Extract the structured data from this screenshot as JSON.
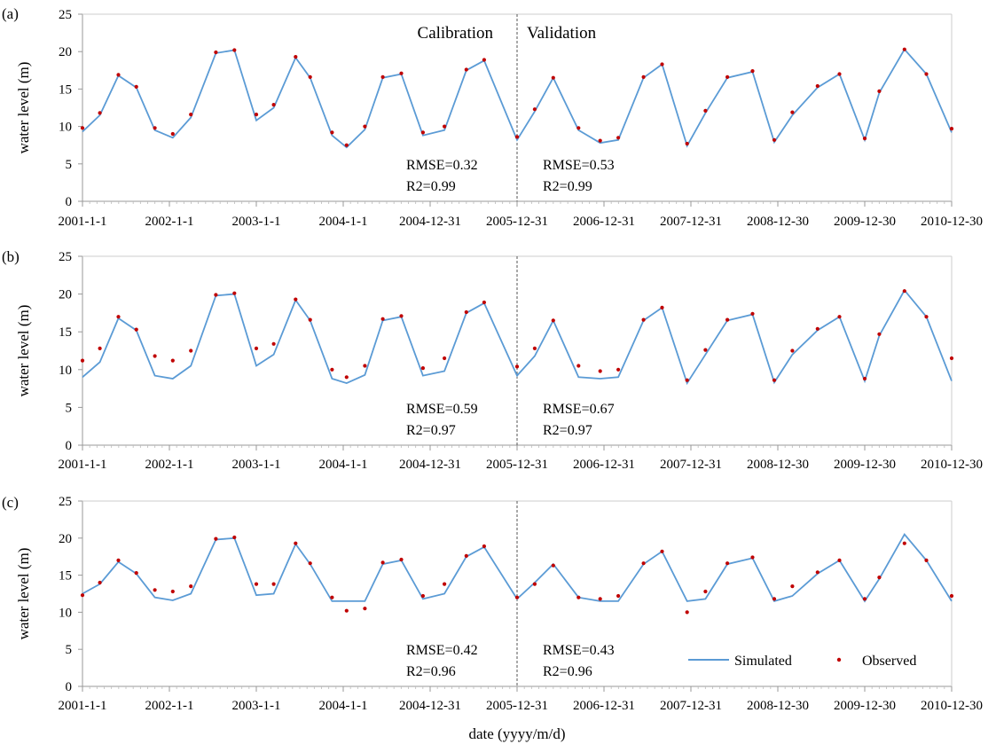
{
  "figure": {
    "xlabel": "date (yyyy/m/d)",
    "x_tick_labels": [
      "2001-1-1",
      "2002-1-1",
      "2003-1-1",
      "2004-1-1",
      "2004-12-31",
      "2005-12-31",
      "2006-12-31",
      "2007-12-31",
      "2008-12-30",
      "2009-12-30",
      "2010-12-30"
    ],
    "calibration_label": "Calibration",
    "validation_label": "Validation",
    "legend": {
      "simulated": "Simulated",
      "observed": "Observed"
    },
    "colors": {
      "simulated": "#5b9bd5",
      "observed": "#c00000"
    }
  },
  "chart_data": [
    {
      "panel": "(a)",
      "type": "line",
      "ylabel": "water level (m)",
      "ylim": [
        0,
        25
      ],
      "yticks": [
        0,
        5,
        10,
        15,
        20,
        25
      ],
      "split_date": "2005-12-31",
      "stats": {
        "calibration": {
          "rmse": "RMSE=0.32",
          "r2": "R2=0.99"
        },
        "validation": {
          "rmse": "RMSE=0.53",
          "r2": "R2=0.99"
        }
      },
      "series": [
        {
          "name": "Simulated",
          "style": "line",
          "x": [
            "2001-01-01",
            "2001-03-15",
            "2001-06-01",
            "2001-08-15",
            "2001-11-01",
            "2002-01-15",
            "2002-04-01",
            "2002-07-15",
            "2002-10-01",
            "2003-01-01",
            "2003-03-15",
            "2003-06-15",
            "2003-08-15",
            "2003-11-15",
            "2004-01-15",
            "2004-04-01",
            "2004-06-15",
            "2004-09-01",
            "2004-12-01",
            "2005-03-01",
            "2005-06-01",
            "2005-08-15",
            "2005-12-31",
            "2006-03-15",
            "2006-06-01",
            "2006-09-15",
            "2006-12-15",
            "2007-03-01",
            "2007-06-15",
            "2007-09-01",
            "2007-12-15",
            "2008-03-01",
            "2008-06-01",
            "2008-09-15",
            "2008-12-15",
            "2009-03-01",
            "2009-06-15",
            "2009-09-15",
            "2009-12-30",
            "2010-03-01",
            "2010-06-15",
            "2010-09-15",
            "2010-12-30"
          ],
          "values": [
            9.3,
            11.5,
            16.8,
            15.2,
            9.5,
            8.5,
            11.2,
            19.8,
            20.2,
            10.8,
            12.5,
            19.2,
            16.5,
            8.8,
            7.2,
            9.6,
            16.5,
            17.0,
            8.8,
            9.5,
            17.5,
            18.8,
            8.2,
            12.0,
            16.5,
            9.5,
            7.8,
            8.2,
            16.5,
            18.3,
            7.4,
            11.8,
            16.5,
            17.3,
            7.9,
            11.5,
            15.2,
            17.0,
            8.2,
            14.5,
            20.3,
            17.0,
            9.2
          ]
        },
        {
          "name": "Observed",
          "style": "dots",
          "x": [
            "2001-01-01",
            "2001-03-15",
            "2001-06-01",
            "2001-08-15",
            "2001-11-01",
            "2002-01-15",
            "2002-04-01",
            "2002-07-15",
            "2002-10-01",
            "2003-01-01",
            "2003-03-15",
            "2003-06-15",
            "2003-08-15",
            "2003-11-15",
            "2004-01-15",
            "2004-04-01",
            "2004-06-15",
            "2004-09-01",
            "2004-12-01",
            "2005-03-01",
            "2005-06-01",
            "2005-08-15",
            "2005-12-31",
            "2006-03-15",
            "2006-06-01",
            "2006-09-15",
            "2006-12-15",
            "2007-03-01",
            "2007-06-15",
            "2007-09-01",
            "2007-12-15",
            "2008-03-01",
            "2008-06-01",
            "2008-09-15",
            "2008-12-15",
            "2009-03-01",
            "2009-06-15",
            "2009-09-15",
            "2009-12-30",
            "2010-03-01",
            "2010-06-15",
            "2010-09-15",
            "2010-12-30"
          ],
          "values": [
            9.8,
            11.8,
            16.9,
            15.3,
            9.8,
            9.0,
            11.6,
            19.9,
            20.2,
            11.6,
            12.9,
            19.3,
            16.6,
            9.2,
            7.5,
            10.0,
            16.6,
            17.1,
            9.2,
            10.0,
            17.6,
            18.9,
            8.6,
            12.3,
            16.5,
            9.8,
            8.1,
            8.5,
            16.6,
            18.3,
            7.7,
            12.1,
            16.6,
            17.4,
            8.2,
            11.9,
            15.4,
            17.0,
            8.4,
            14.7,
            20.3,
            17.0,
            9.7
          ]
        }
      ]
    },
    {
      "panel": "(b)",
      "type": "line",
      "ylabel": "water level (m)",
      "ylim": [
        0,
        25
      ],
      "yticks": [
        0,
        5,
        10,
        15,
        20,
        25
      ],
      "split_date": "2005-12-31",
      "stats": {
        "calibration": {
          "rmse": "RMSE=0.59",
          "r2": "R2=0.97"
        },
        "validation": {
          "rmse": "RMSE=0.67",
          "r2": "R2=0.97"
        }
      },
      "series": [
        {
          "name": "Simulated",
          "style": "line",
          "x": [
            "2001-01-01",
            "2001-03-15",
            "2001-06-01",
            "2001-08-15",
            "2001-11-01",
            "2002-01-15",
            "2002-04-01",
            "2002-07-15",
            "2002-10-01",
            "2003-01-01",
            "2003-03-15",
            "2003-06-15",
            "2003-08-15",
            "2003-11-15",
            "2004-01-15",
            "2004-04-01",
            "2004-06-15",
            "2004-09-01",
            "2004-12-01",
            "2005-03-01",
            "2005-06-01",
            "2005-08-15",
            "2005-12-31",
            "2006-03-15",
            "2006-06-01",
            "2006-09-15",
            "2006-12-15",
            "2007-03-01",
            "2007-06-15",
            "2007-09-01",
            "2007-12-15",
            "2008-03-01",
            "2008-06-01",
            "2008-09-15",
            "2008-12-15",
            "2009-03-01",
            "2009-06-15",
            "2009-09-15",
            "2009-12-30",
            "2010-03-01",
            "2010-06-15",
            "2010-09-15",
            "2010-12-30"
          ],
          "values": [
            9.0,
            11.0,
            16.8,
            15.2,
            9.2,
            8.8,
            10.5,
            19.8,
            20.0,
            10.5,
            12.0,
            19.2,
            16.5,
            8.8,
            8.2,
            9.3,
            16.5,
            17.0,
            9.2,
            9.8,
            17.5,
            18.8,
            9.2,
            11.8,
            16.5,
            9.0,
            8.8,
            9.0,
            16.5,
            18.2,
            8.2,
            12.0,
            16.5,
            17.3,
            8.3,
            12.0,
            15.2,
            17.0,
            8.5,
            14.5,
            20.5,
            17.0,
            8.5
          ]
        },
        {
          "name": "Observed",
          "style": "dots",
          "x": [
            "2001-01-01",
            "2001-03-15",
            "2001-06-01",
            "2001-08-15",
            "2001-11-01",
            "2002-01-15",
            "2002-04-01",
            "2002-07-15",
            "2002-10-01",
            "2003-01-01",
            "2003-03-15",
            "2003-06-15",
            "2003-08-15",
            "2003-11-15",
            "2004-01-15",
            "2004-04-01",
            "2004-06-15",
            "2004-09-01",
            "2004-12-01",
            "2005-03-01",
            "2005-06-01",
            "2005-08-15",
            "2005-12-31",
            "2006-03-15",
            "2006-06-01",
            "2006-09-15",
            "2006-12-15",
            "2007-03-01",
            "2007-06-15",
            "2007-09-01",
            "2007-12-15",
            "2008-03-01",
            "2008-06-01",
            "2008-09-15",
            "2008-12-15",
            "2009-03-01",
            "2009-06-15",
            "2009-09-15",
            "2009-12-30",
            "2010-03-01",
            "2010-06-15",
            "2010-09-15",
            "2010-12-30"
          ],
          "values": [
            11.2,
            12.8,
            17.0,
            15.3,
            11.8,
            11.2,
            12.5,
            19.9,
            20.1,
            12.8,
            13.4,
            19.3,
            16.6,
            10.0,
            9.0,
            10.5,
            16.7,
            17.1,
            10.2,
            11.5,
            17.6,
            18.9,
            10.4,
            12.8,
            16.5,
            10.5,
            9.8,
            10.0,
            16.6,
            18.2,
            8.6,
            12.6,
            16.6,
            17.4,
            8.6,
            12.5,
            15.4,
            17.0,
            8.8,
            14.7,
            20.4,
            17.0,
            11.5
          ]
        }
      ]
    },
    {
      "panel": "(c)",
      "type": "line",
      "ylabel": "water level (m)",
      "ylim": [
        0,
        25
      ],
      "yticks": [
        0,
        5,
        10,
        15,
        20,
        25
      ],
      "split_date": "2005-12-31",
      "stats": {
        "calibration": {
          "rmse": "RMSE=0.42",
          "r2": "R2=0.96"
        },
        "validation": {
          "rmse": "RMSE=0.43",
          "r2": "R2=0.96"
        }
      },
      "series": [
        {
          "name": "Simulated",
          "style": "line",
          "x": [
            "2001-01-01",
            "2001-03-15",
            "2001-06-01",
            "2001-08-15",
            "2001-11-01",
            "2002-01-15",
            "2002-04-01",
            "2002-07-15",
            "2002-10-01",
            "2003-01-01",
            "2003-03-15",
            "2003-06-15",
            "2003-08-15",
            "2003-11-15",
            "2004-01-15",
            "2004-04-01",
            "2004-06-15",
            "2004-09-01",
            "2004-12-01",
            "2005-03-01",
            "2005-06-01",
            "2005-08-15",
            "2005-12-31",
            "2006-03-15",
            "2006-06-01",
            "2006-09-15",
            "2006-12-15",
            "2007-03-01",
            "2007-06-15",
            "2007-09-01",
            "2007-12-15",
            "2008-03-01",
            "2008-06-01",
            "2008-09-15",
            "2008-12-15",
            "2009-03-01",
            "2009-06-15",
            "2009-09-15",
            "2009-12-30",
            "2010-03-01",
            "2010-06-15",
            "2010-09-15",
            "2010-12-30"
          ],
          "values": [
            12.5,
            13.8,
            16.8,
            15.2,
            12.0,
            11.6,
            12.5,
            19.8,
            20.0,
            12.3,
            12.5,
            19.2,
            16.5,
            11.5,
            11.5,
            11.5,
            16.5,
            17.0,
            11.8,
            12.5,
            17.5,
            18.8,
            11.8,
            14.0,
            16.5,
            12.0,
            11.5,
            11.5,
            16.5,
            18.2,
            11.5,
            11.8,
            16.5,
            17.3,
            11.5,
            12.2,
            15.2,
            17.0,
            11.5,
            14.5,
            20.5,
            17.0,
            11.5
          ]
        },
        {
          "name": "Observed",
          "style": "dots",
          "x": [
            "2001-01-01",
            "2001-03-15",
            "2001-06-01",
            "2001-08-15",
            "2001-11-01",
            "2002-01-15",
            "2002-04-01",
            "2002-07-15",
            "2002-10-01",
            "2003-01-01",
            "2003-03-15",
            "2003-06-15",
            "2003-08-15",
            "2003-11-15",
            "2004-01-15",
            "2004-04-01",
            "2004-06-15",
            "2004-09-01",
            "2004-12-01",
            "2005-03-01",
            "2005-06-01",
            "2005-08-15",
            "2005-12-31",
            "2006-03-15",
            "2006-06-01",
            "2006-09-15",
            "2006-12-15",
            "2007-03-01",
            "2007-06-15",
            "2007-09-01",
            "2007-12-15",
            "2008-03-01",
            "2008-06-01",
            "2008-09-15",
            "2008-12-15",
            "2009-03-01",
            "2009-06-15",
            "2009-09-15",
            "2009-12-30",
            "2010-03-01",
            "2010-06-15",
            "2010-09-15",
            "2010-12-30"
          ],
          "values": [
            12.3,
            14.0,
            17.0,
            15.3,
            13.0,
            12.8,
            13.5,
            19.9,
            20.1,
            13.8,
            13.8,
            19.3,
            16.6,
            12.0,
            10.2,
            10.5,
            16.7,
            17.1,
            12.2,
            13.8,
            17.6,
            18.9,
            12.0,
            13.8,
            16.3,
            12.0,
            11.8,
            12.2,
            16.6,
            18.2,
            10.0,
            12.8,
            16.6,
            17.4,
            11.8,
            13.5,
            15.4,
            17.0,
            11.8,
            14.7,
            19.3,
            17.0,
            12.2
          ]
        }
      ]
    }
  ]
}
